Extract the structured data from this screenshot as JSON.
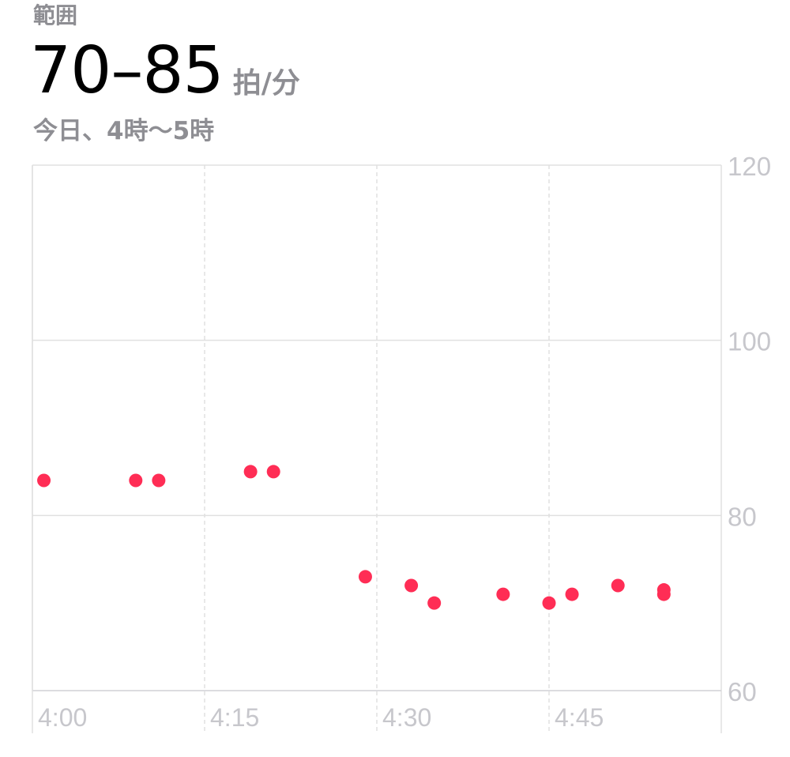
{
  "header": {
    "range_label": "範囲",
    "range_value": "70–85",
    "range_unit": "拍/分",
    "date_range": "今日、4時〜5時"
  },
  "colors": {
    "point": "#ff2d55",
    "grid": "#e0e0e0",
    "axis_text": "#c7c7cc"
  },
  "chart_data": {
    "type": "scatter",
    "title": "",
    "xlabel": "",
    "ylabel": "",
    "xlim": [
      "4:00",
      "5:00"
    ],
    "ylim": [
      60,
      120
    ],
    "yticks": [
      120,
      100,
      80,
      60
    ],
    "xticks": [
      "4:00",
      "4:15",
      "4:30",
      "4:45"
    ],
    "grid": true,
    "series": [
      {
        "points": [
          {
            "x": "4:01",
            "y": 84
          },
          {
            "x": "4:09",
            "y": 84
          },
          {
            "x": "4:11",
            "y": 84
          },
          {
            "x": "4:19",
            "y": 85
          },
          {
            "x": "4:21",
            "y": 85
          },
          {
            "x": "4:29",
            "y": 73
          },
          {
            "x": "4:33",
            "y": 72
          },
          {
            "x": "4:35",
            "y": 70
          },
          {
            "x": "4:41",
            "y": 71
          },
          {
            "x": "4:45",
            "y": 70
          },
          {
            "x": "4:47",
            "y": 71
          },
          {
            "x": "4:51",
            "y": 72
          },
          {
            "x": "4:55",
            "y": 71.5
          },
          {
            "x": "4:55",
            "y": 71
          }
        ]
      }
    ]
  }
}
